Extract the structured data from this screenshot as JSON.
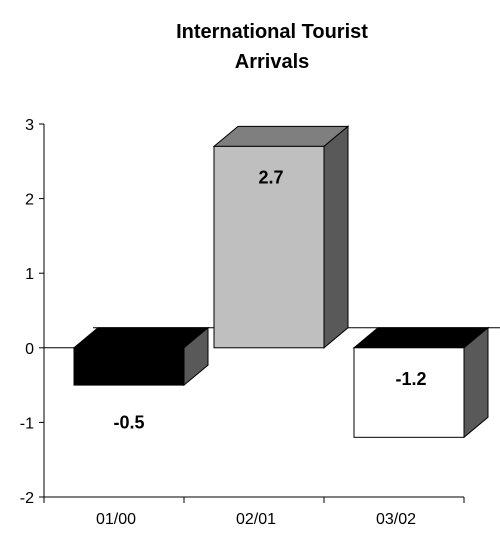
{
  "chart_data": {
    "type": "bar",
    "style": "3d",
    "title_lines": [
      "International Tourist",
      "Arrivals"
    ],
    "categories": [
      "01/00",
      "02/01",
      "03/02"
    ],
    "values": [
      -0.5,
      2.7,
      -1.2
    ],
    "data_labels": [
      "-0.5",
      "2.7",
      "-1.2"
    ],
    "ylim": [
      -2,
      3
    ],
    "yticks": [
      "3",
      "2",
      "1",
      "0",
      "-1",
      "-2"
    ],
    "grid": false,
    "legend": "none",
    "xlabel": "",
    "ylabel": "",
    "colors": {
      "bars": [
        "#000000",
        "#bfbfbf",
        "#ffffff"
      ],
      "bar_tops": [
        "#000000",
        "#7f7f7f",
        "#000000"
      ],
      "side": "#595959",
      "outline": "#000000"
    }
  }
}
